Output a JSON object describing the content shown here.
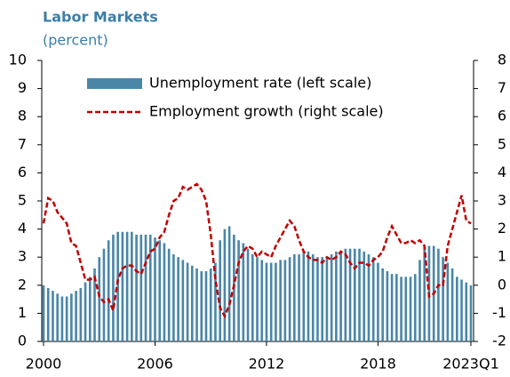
{
  "chart_data": {
    "type": "bar_line",
    "title": "Labor Markets",
    "subtitle": "(percent)",
    "categories": [
      "2000",
      null,
      null,
      null,
      null,
      null,
      null,
      null,
      null,
      null,
      null,
      null,
      null,
      null,
      null,
      null,
      null,
      null,
      null,
      null,
      null,
      null,
      null,
      null,
      "2006",
      null,
      null,
      null,
      null,
      null,
      null,
      null,
      null,
      null,
      null,
      null,
      null,
      null,
      null,
      null,
      null,
      null,
      null,
      null,
      null,
      null,
      null,
      null,
      "2012",
      null,
      null,
      null,
      null,
      null,
      null,
      null,
      null,
      null,
      null,
      null,
      null,
      null,
      null,
      null,
      null,
      null,
      null,
      null,
      null,
      null,
      null,
      null,
      "2018",
      null,
      null,
      null,
      null,
      null,
      null,
      null,
      null,
      null,
      null,
      null,
      null,
      null,
      null,
      null,
      null,
      null,
      null,
      null,
      "2023Q1"
    ],
    "series": [
      {
        "name": "Unemployment rate (left scale)",
        "color": "#4a86a8",
        "kind": "bar",
        "axis": "y",
        "values": [
          2.0,
          1.9,
          1.8,
          1.7,
          1.6,
          1.6,
          1.7,
          1.8,
          1.9,
          2.1,
          2.3,
          2.6,
          3.0,
          3.3,
          3.6,
          3.8,
          3.9,
          3.9,
          3.9,
          3.9,
          3.8,
          3.8,
          3.8,
          3.8,
          3.7,
          3.6,
          3.5,
          3.3,
          3.1,
          3.0,
          2.9,
          2.8,
          2.7,
          2.6,
          2.5,
          2.5,
          2.6,
          2.8,
          3.6,
          4.0,
          4.1,
          3.8,
          3.6,
          3.5,
          3.3,
          3.1,
          3.0,
          2.9,
          2.8,
          2.8,
          2.8,
          2.9,
          2.9,
          3.0,
          3.1,
          3.1,
          3.2,
          3.2,
          3.1,
          3.0,
          3.0,
          3.0,
          3.1,
          3.2,
          3.2,
          3.3,
          3.3,
          3.3,
          3.3,
          3.2,
          3.1,
          3.0,
          2.8,
          2.6,
          2.5,
          2.4,
          2.4,
          2.3,
          2.3,
          2.3,
          2.4,
          2.9,
          3.4,
          3.4,
          3.4,
          3.3,
          3.0,
          2.8,
          2.6,
          2.3,
          2.2,
          2.1,
          2.0
        ]
      },
      {
        "name": "Employment growth (right scale)",
        "color": "#c00000",
        "kind": "line",
        "axis": "y2",
        "values": [
          2.2,
          3.1,
          3.0,
          2.6,
          2.4,
          2.2,
          1.5,
          1.4,
          0.8,
          0.2,
          0.2,
          0.3,
          -0.4,
          -0.6,
          -0.5,
          -0.9,
          0.2,
          0.6,
          0.7,
          0.7,
          0.5,
          0.4,
          0.8,
          1.2,
          1.3,
          1.7,
          1.9,
          2.5,
          3.0,
          3.1,
          3.5,
          3.4,
          3.5,
          3.6,
          3.4,
          3.0,
          1.8,
          0.2,
          -0.8,
          -1.1,
          -0.7,
          0.0,
          0.8,
          1.2,
          1.4,
          1.3,
          1.0,
          1.2,
          1.1,
          1.0,
          1.4,
          1.7,
          2.0,
          2.3,
          2.1,
          1.6,
          1.2,
          1.0,
          0.9,
          0.9,
          0.8,
          1.0,
          0.9,
          1.0,
          1.2,
          1.1,
          0.8,
          0.6,
          0.8,
          0.8,
          0.7,
          0.9,
          1.0,
          1.2,
          1.7,
          2.1,
          1.8,
          1.5,
          1.5,
          1.6,
          1.5,
          1.6,
          1.4,
          -0.4,
          -0.3,
          0.0,
          0.0,
          1.4,
          2.0,
          2.6,
          3.2,
          2.3,
          2.2
        ]
      }
    ],
    "ylim": [
      0,
      10
    ],
    "yticks": [
      0,
      1,
      2,
      3,
      4,
      5,
      6,
      7,
      8,
      9,
      10
    ],
    "y2lim": [
      -2,
      8
    ],
    "y2ticks": [
      -2,
      -1,
      0,
      1,
      2,
      3,
      4,
      5,
      6,
      7,
      8
    ]
  }
}
